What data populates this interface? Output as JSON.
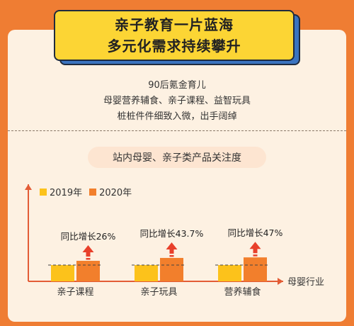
{
  "header": {
    "line1": "亲子教育一片蓝海",
    "line2": "多元化需求持续攀升"
  },
  "intro": {
    "lines": [
      "90后氪金育儿",
      "母婴营养辅食、亲子课程、益智玩具",
      "桩桩件件细致入微，出手阔绰"
    ]
  },
  "chart_data": {
    "type": "bar",
    "title": "站内母婴、亲子类产品关注度",
    "xlabel": "母婴行业",
    "ylabel": "",
    "categories": [
      "亲子课程",
      "亲子玩具",
      "营养辅食"
    ],
    "series": [
      {
        "name": "2019年",
        "values": [
          100,
          100,
          100
        ],
        "color": "#fcc21b"
      },
      {
        "name": "2020年",
        "values": [
          126,
          143.7,
          147
        ],
        "color": "#f27f2c"
      }
    ],
    "annotations": [
      "同比增长26%",
      "同比增长43.7%",
      "同比增长47%"
    ],
    "legend_position": "top-left",
    "grid": false,
    "axis_color": "#e35c36",
    "arrow_color": "#e8402b"
  }
}
